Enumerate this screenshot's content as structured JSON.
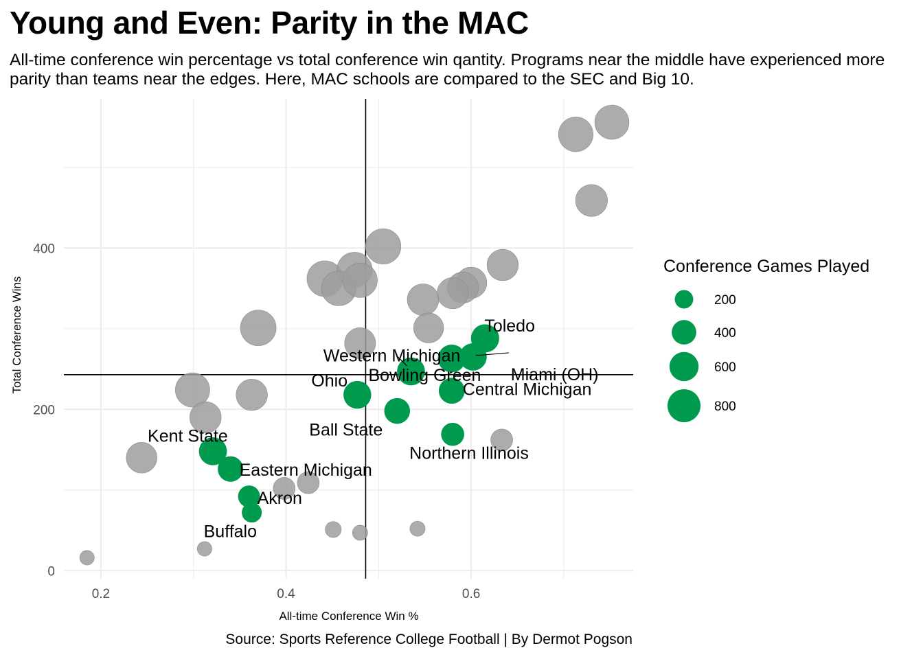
{
  "title": "Young and Even: Parity in the MAC",
  "subtitle": [
    "All-time conference win percentage vs total conference win qantity. Programs near the middle have experienced more",
    "parity than teams near the edges. Here, MAC schools are compared to the SEC and Big 10."
  ],
  "caption": "Source: Sports Reference College Football | By Dermot Pogson",
  "colors": {
    "mac": "#009a4e",
    "other": "#9e9e9e",
    "grid": "#ebebeb",
    "reference_line": "#000000"
  },
  "chart_data": {
    "type": "scatter",
    "xlabel": "All-time Conference Win %",
    "ylabel": "Total Conference Wins",
    "xlim": [
      0.16,
      0.775
    ],
    "ylim": [
      -10,
      585
    ],
    "x_ticks": [
      0.2,
      0.4,
      0.6
    ],
    "x_tick_labels": [
      "0.2",
      "0.4",
      "0.6"
    ],
    "y_ticks": [
      0,
      200,
      400
    ],
    "y_tick_labels": [
      "0",
      "200",
      "400"
    ],
    "reference_lines": {
      "x": 0.486,
      "y": 243
    },
    "grid": true,
    "size_legend": {
      "title": "Conference Games Played",
      "position": "right",
      "values": [
        200,
        400,
        600,
        800
      ],
      "labels": [
        "200",
        "400",
        "600",
        "800"
      ]
    },
    "series": [
      {
        "name": "MAC",
        "points": [
          {
            "label": "Toledo",
            "x": 0.615,
            "y": 288,
            "games": 470
          },
          {
            "label": "Miami (OH)",
            "x": 0.602,
            "y": 265,
            "games": 440
          },
          {
            "label": "Western Michigan",
            "x": 0.579,
            "y": 263,
            "games": 455
          },
          {
            "label": "Bowling Green",
            "x": 0.535,
            "y": 247,
            "games": 460
          },
          {
            "label": "Ohio",
            "x": 0.477,
            "y": 218,
            "games": 455
          },
          {
            "label": "Central Michigan",
            "x": 0.579,
            "y": 223,
            "games": 385
          },
          {
            "label": "Ball State",
            "x": 0.52,
            "y": 198,
            "games": 380
          },
          {
            "label": "Northern Illinois",
            "x": 0.58,
            "y": 169,
            "games": 290
          },
          {
            "label": "Kent State",
            "x": 0.321,
            "y": 148,
            "games": 460
          },
          {
            "label": "Eastern Michigan",
            "x": 0.34,
            "y": 126,
            "games": 370
          },
          {
            "label": "Akron",
            "x": 0.36,
            "y": 92,
            "games": 255
          },
          {
            "label": "Buffalo",
            "x": 0.363,
            "y": 72,
            "games": 200
          }
        ]
      },
      {
        "name": "SEC and Big 10",
        "points": [
          {
            "x": 0.752,
            "y": 556,
            "games": 740
          },
          {
            "x": 0.713,
            "y": 541,
            "games": 760
          },
          {
            "x": 0.73,
            "y": 459,
            "games": 630
          },
          {
            "x": 0.505,
            "y": 402,
            "games": 795
          },
          {
            "x": 0.634,
            "y": 379,
            "games": 600
          },
          {
            "x": 0.442,
            "y": 362,
            "games": 820
          },
          {
            "x": 0.474,
            "y": 373,
            "games": 790
          },
          {
            "x": 0.457,
            "y": 350,
            "games": 765
          },
          {
            "x": 0.48,
            "y": 360,
            "games": 750
          },
          {
            "x": 0.6,
            "y": 357,
            "games": 595
          },
          {
            "x": 0.591,
            "y": 351,
            "games": 590
          },
          {
            "x": 0.58,
            "y": 344,
            "games": 595
          },
          {
            "x": 0.548,
            "y": 336,
            "games": 612
          },
          {
            "x": 0.37,
            "y": 301,
            "games": 812
          },
          {
            "x": 0.554,
            "y": 301,
            "games": 545
          },
          {
            "x": 0.48,
            "y": 282,
            "games": 585
          },
          {
            "x": 0.299,
            "y": 224,
            "games": 745
          },
          {
            "x": 0.363,
            "y": 218,
            "games": 600
          },
          {
            "x": 0.313,
            "y": 190,
            "games": 605
          },
          {
            "x": 0.244,
            "y": 140,
            "games": 572
          },
          {
            "x": 0.633,
            "y": 162,
            "games": 256
          },
          {
            "x": 0.424,
            "y": 109,
            "games": 256
          },
          {
            "x": 0.398,
            "y": 102,
            "games": 256
          },
          {
            "x": 0.451,
            "y": 51,
            "games": 113
          },
          {
            "x": 0.48,
            "y": 47,
            "games": 97
          },
          {
            "x": 0.542,
            "y": 52,
            "games": 96
          },
          {
            "x": 0.312,
            "y": 27,
            "games": 87
          },
          {
            "x": 0.185,
            "y": 16,
            "games": 86
          }
        ]
      }
    ]
  }
}
